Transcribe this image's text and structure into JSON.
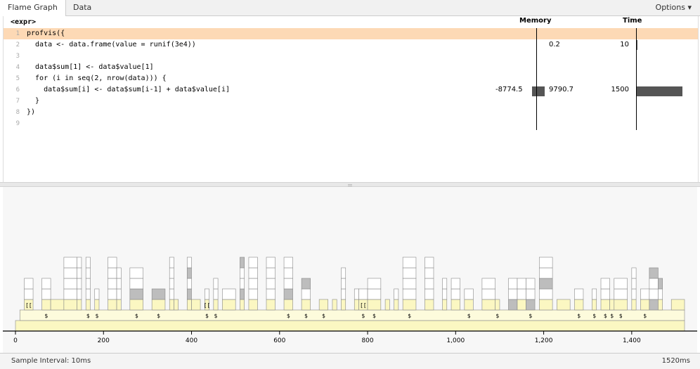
{
  "tabs": [
    {
      "label": "Flame Graph"
    },
    {
      "label": "Data"
    }
  ],
  "options_label": "Options ▾",
  "code": {
    "expr_label": "<expr>",
    "col_memory": "Memory",
    "col_time": "Time",
    "lines": [
      {
        "num": "1",
        "text": "profvis({",
        "mem_neg": "",
        "mem_pos": "",
        "time": "",
        "highlight": true
      },
      {
        "num": "2",
        "text": "  data <- data.frame(value = runif(3e4))",
        "mem_neg": "",
        "mem_pos": "0.2",
        "time": "10",
        "highlight": false
      },
      {
        "num": "3",
        "text": "",
        "mem_neg": "",
        "mem_pos": "",
        "time": "",
        "highlight": false
      },
      {
        "num": "4",
        "text": "  data$sum[1] <- data$value[1]",
        "mem_neg": "",
        "mem_pos": "",
        "time": "",
        "highlight": false
      },
      {
        "num": "5",
        "text": "  for (i in seq(2, nrow(data))) {",
        "mem_neg": "",
        "mem_pos": "",
        "time": "",
        "highlight": false
      },
      {
        "num": "6",
        "text": "    data$sum[i] <- data$sum[i-1] + data$value[i]",
        "mem_neg": "-8774.5",
        "mem_pos": "9790.7",
        "time": "1500",
        "highlight": false
      },
      {
        "num": "7",
        "text": "  }",
        "mem_neg": "",
        "mem_pos": "",
        "time": "",
        "highlight": false
      },
      {
        "num": "8",
        "text": "})",
        "mem_neg": "",
        "mem_pos": "",
        "time": "",
        "highlight": false
      },
      {
        "num": "9",
        "text": "",
        "mem_neg": "",
        "mem_pos": "",
        "time": "",
        "highlight": false
      }
    ]
  },
  "flame": {
    "axis_ticks": [
      "0",
      "200",
      "400",
      "600",
      "800",
      "1,000",
      "1,200",
      "1,400"
    ],
    "axis_values": [
      0,
      200,
      400,
      600,
      800,
      1000,
      1200,
      1400
    ],
    "max_time_ms": 1520,
    "labels": [
      "$",
      "[["
    ]
  },
  "status": {
    "sample_interval": "Sample Interval: 10ms",
    "total": "1520ms"
  }
}
